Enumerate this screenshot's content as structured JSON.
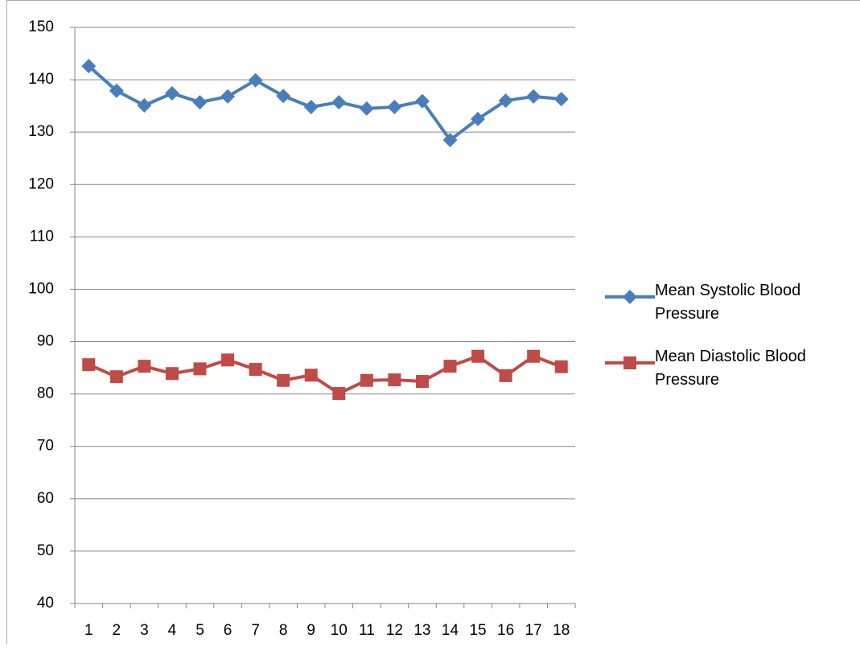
{
  "chart_data": {
    "type": "line",
    "categories": [
      "1",
      "2",
      "3",
      "4",
      "5",
      "6",
      "7",
      "8",
      "9",
      "10",
      "11",
      "12",
      "13",
      "14",
      "15",
      "16",
      "17",
      "18"
    ],
    "series": [
      {
        "name": "Mean Systolic Blood Pressure",
        "color": "#4a7ebb",
        "marker": "diamond",
        "values": [
          142.6,
          137.9,
          135.1,
          137.4,
          135.7,
          136.8,
          139.9,
          136.9,
          134.8,
          135.7,
          134.5,
          134.8,
          135.9,
          128.5,
          132.5,
          136.0,
          136.8,
          136.3
        ]
      },
      {
        "name": "Mean Diastolic Blood Pressure",
        "color": "#be4b48",
        "marker": "square",
        "values": [
          85.6,
          83.3,
          85.3,
          83.9,
          84.8,
          86.5,
          84.7,
          82.6,
          83.6,
          80.1,
          82.6,
          82.7,
          82.4,
          85.3,
          87.2,
          83.5,
          87.2,
          85.2
        ]
      }
    ],
    "ylim": [
      40,
      150
    ],
    "yticks": [
      40,
      50,
      60,
      70,
      80,
      90,
      100,
      110,
      120,
      130,
      140,
      150
    ],
    "grid": true,
    "legend": "right"
  }
}
